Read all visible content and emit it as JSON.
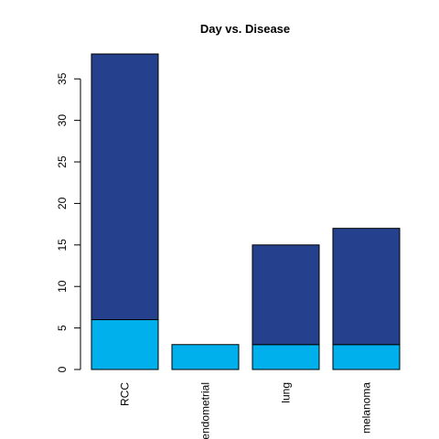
{
  "chart_data": {
    "type": "bar",
    "stacked": true,
    "title": "Day vs. Disease",
    "xlabel": "",
    "ylabel": "",
    "categories": [
      "RCC",
      "endometrial",
      "lung",
      "melanoma"
    ],
    "series": [
      {
        "values": [
          6,
          3,
          3,
          3
        ],
        "color": "#00B0EC"
      },
      {
        "values": [
          32,
          0,
          12,
          14
        ],
        "color": "#25408C"
      }
    ],
    "totals": [
      38,
      3,
      15,
      17
    ],
    "ylim": [
      0,
      38
    ],
    "yticks": [
      0,
      5,
      10,
      15,
      20,
      25,
      30,
      35
    ],
    "grid": false,
    "legend": "none"
  }
}
